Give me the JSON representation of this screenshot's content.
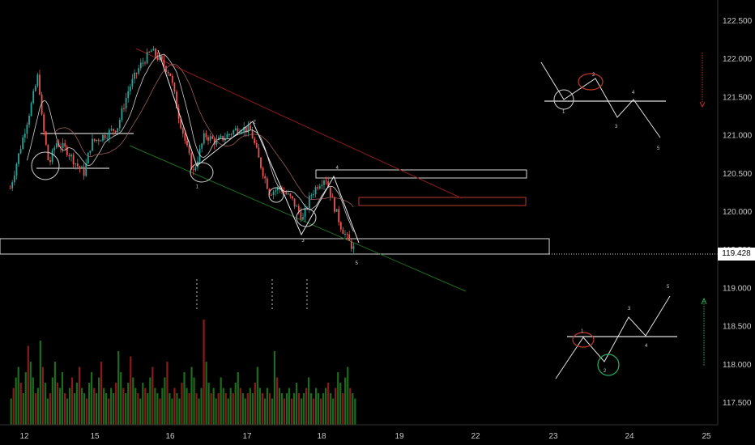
{
  "chart_data": {
    "type": "candlestick",
    "title": "",
    "xlabel": "",
    "ylabel": "",
    "ylim": [
      117.2,
      122.6
    ],
    "y_ticks": [
      "122.500",
      "122.000",
      "121.500",
      "121.000",
      "120.500",
      "120.000",
      "119.500",
      "119.000",
      "118.500",
      "118.000",
      "117.500"
    ],
    "x_ticks": [
      "12",
      "15",
      "16",
      "17",
      "18",
      "19",
      "22",
      "23",
      "24",
      "25"
    ],
    "last_price": "119.428",
    "price_path": [
      [
        11.8,
        120.3
      ],
      [
        12.1,
        121.4
      ],
      [
        12.2,
        121.8
      ],
      [
        12.25,
        121.2
      ],
      [
        12.35,
        120.6
      ],
      [
        12.45,
        120.9
      ],
      [
        12.6,
        120.8
      ],
      [
        12.75,
        120.6
      ],
      [
        12.85,
        120.5
      ],
      [
        12.95,
        120.9
      ],
      [
        15.05,
        120.95
      ],
      [
        15.3,
        121.1
      ],
      [
        15.45,
        121.6
      ],
      [
        15.6,
        121.9
      ],
      [
        15.75,
        122.1
      ],
      [
        15.85,
        122.0
      ],
      [
        16.0,
        121.8
      ],
      [
        16.1,
        121.3
      ],
      [
        16.2,
        120.9
      ],
      [
        16.3,
        120.5
      ],
      [
        16.45,
        121.0
      ],
      [
        16.6,
        120.9
      ],
      [
        16.75,
        121.0
      ],
      [
        16.9,
        121.1
      ],
      [
        17.05,
        121.05
      ],
      [
        17.15,
        120.7
      ],
      [
        17.3,
        120.25
      ],
      [
        17.45,
        120.3
      ],
      [
        17.6,
        120.15
      ],
      [
        17.75,
        119.9
      ],
      [
        17.85,
        120.2
      ],
      [
        17.95,
        120.35
      ],
      [
        18.05,
        120.45
      ],
      [
        18.15,
        120.1
      ],
      [
        18.25,
        119.8
      ],
      [
        18.35,
        119.6
      ],
      [
        18.45,
        119.45
      ]
    ],
    "volume_ratio": [
      0.25,
      0.35,
      0.45,
      0.55,
      0.4,
      0.3,
      0.5,
      0.75,
      0.6,
      0.45,
      0.3,
      0.35,
      0.8,
      0.55,
      0.4,
      0.25,
      0.3,
      0.45,
      0.6,
      0.4,
      0.35,
      0.5,
      0.3,
      0.25,
      0.35,
      0.45,
      0.3,
      0.4,
      0.55,
      0.35,
      0.3,
      0.25,
      0.4,
      0.5,
      0.35,
      0.3,
      0.45,
      0.6,
      0.35,
      0.3,
      0.25,
      0.35,
      0.3,
      0.4,
      0.7,
      0.5,
      0.35,
      0.3,
      0.4,
      0.65,
      0.45,
      0.35,
      0.3,
      0.25,
      0.4,
      0.35,
      0.3,
      0.45,
      0.55,
      0.35,
      0.3,
      0.25,
      0.35,
      0.45,
      0.6,
      0.3,
      0.25,
      0.35,
      0.3,
      0.25,
      0.4,
      0.5,
      0.35,
      0.3,
      0.55,
      0.45,
      0.3,
      0.25,
      0.35,
      1.0,
      0.6,
      0.4,
      0.3,
      0.35,
      0.25,
      0.3,
      0.45,
      0.35,
      0.3,
      0.25,
      0.35,
      0.3,
      0.4,
      0.5,
      0.35,
      0.3,
      0.25,
      0.3,
      0.35,
      0.3,
      0.4,
      0.55,
      0.35,
      0.3,
      0.25,
      0.35,
      0.3,
      0.25,
      0.7,
      0.45,
      0.35,
      0.3,
      0.25,
      0.3,
      0.35,
      0.25,
      0.3,
      0.4,
      0.3,
      0.25,
      0.3,
      0.35,
      0.45,
      0.3,
      0.25,
      0.35,
      0.3,
      0.25,
      0.3,
      0.35,
      0.4,
      0.3,
      0.25,
      0.35,
      0.5,
      0.4,
      0.3,
      0.45,
      0.55,
      0.35,
      0.3,
      0.25
    ],
    "wave_labels_main": [
      {
        "label": "1",
        "x": 16.35,
        "y": 120.3
      },
      {
        "label": "2",
        "x": 17.1,
        "y": 121.15
      },
      {
        "label": "3",
        "x": 17.75,
        "y": 119.6
      },
      {
        "label": "4",
        "x": 18.2,
        "y": 120.55
      },
      {
        "label": "5",
        "x": 18.45,
        "y": 119.3
      }
    ],
    "schematic_bearish_labels": [
      "1",
      "2",
      "3",
      "4",
      "5"
    ],
    "schematic_bullish_labels": [
      "1",
      "2",
      "3",
      "4",
      "5"
    ]
  },
  "colors": {
    "up": "#26a69a",
    "down": "#ef5350",
    "volume_up": "#1e6b1e",
    "volume_down": "#8b1a1a",
    "axis_text": "#c8c8c8",
    "channel_red": "#8b1a1a",
    "channel_green": "#1f6b1f",
    "zone_white": "#d8d8d8",
    "zone_red": "#c0392b",
    "arrow_red": "#c0392b",
    "arrow_green": "#27ae60"
  }
}
